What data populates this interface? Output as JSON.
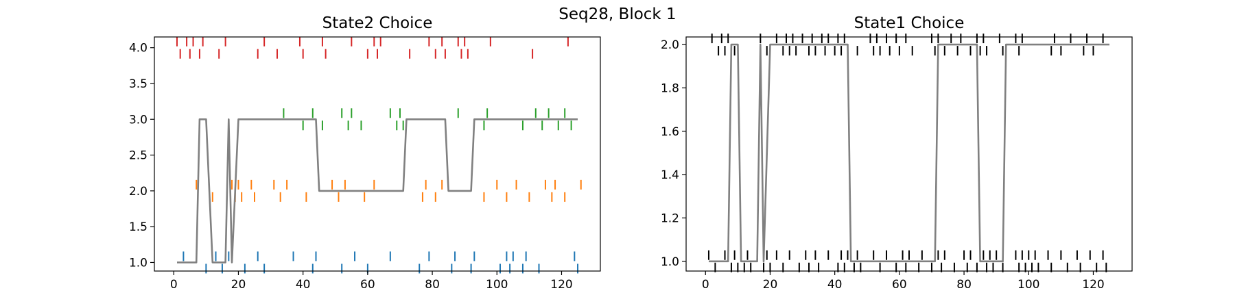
{
  "figure": {
    "suptitle": "Seq28, Block 1"
  },
  "chart_data": [
    {
      "type": "line",
      "title": "State2 Choice",
      "xlabel": "",
      "ylabel": "",
      "xlim": [
        -6,
        132
      ],
      "ylim": [
        0.88,
        4.15
      ],
      "xticks": [
        0,
        20,
        40,
        60,
        80,
        100,
        120
      ],
      "yticks": [
        1.0,
        1.5,
        2.0,
        2.5,
        3.0,
        3.5,
        4.0
      ],
      "ytick_format": 1,
      "grid": false,
      "series": [
        {
          "color": "#808080",
          "x": [
            1,
            7,
            8,
            10,
            12,
            16,
            17,
            18,
            20,
            44,
            45,
            71,
            72,
            84,
            85,
            92,
            93,
            125
          ],
          "y": [
            1,
            1,
            3,
            3,
            1,
            1,
            3,
            1,
            3,
            3,
            2,
            2,
            3,
            3,
            2,
            2,
            3,
            3
          ]
        }
      ],
      "events": [
        {
          "color": "#d62728",
          "level": 4,
          "x": [
            1,
            2,
            4,
            5,
            6,
            8,
            9,
            14,
            16,
            26,
            28,
            32,
            39,
            40,
            46,
            47,
            55,
            60,
            62,
            63,
            64,
            73,
            79,
            81,
            83,
            84,
            88,
            89,
            90,
            91,
            98,
            111,
            122
          ]
        },
        {
          "color": "#2ca02c",
          "level": 3,
          "x": [
            34,
            40,
            43,
            46,
            52,
            54,
            55,
            58,
            67,
            69,
            70,
            71,
            88,
            96,
            97,
            108,
            112,
            114,
            116,
            119,
            121,
            123
          ]
        },
        {
          "color": "#ff7f0e",
          "level": 2,
          "x": [
            7,
            12,
            18,
            19,
            20,
            21,
            24,
            25,
            31,
            33,
            35,
            41,
            49,
            51,
            53,
            59,
            62,
            77,
            78,
            81,
            83,
            96,
            100,
            103,
            106,
            110,
            115,
            117,
            118,
            121,
            126
          ]
        },
        {
          "color": "#1f77b4",
          "level": 1,
          "x": [
            3,
            10,
            13,
            15,
            17,
            22,
            26,
            28,
            37,
            43,
            44,
            52,
            56,
            60,
            67,
            76,
            79,
            86,
            87,
            92,
            93,
            101,
            103,
            104,
            105,
            108,
            109,
            113,
            124,
            125
          ]
        }
      ]
    },
    {
      "type": "line",
      "title": "State1 Choice",
      "xlabel": "",
      "ylabel": "",
      "xlim": [
        -6,
        132
      ],
      "ylim": [
        0.955,
        2.035
      ],
      "xticks": [
        0,
        20,
        40,
        60,
        80,
        100,
        120
      ],
      "yticks": [
        1.0,
        1.2,
        1.4,
        1.6,
        1.8,
        2.0
      ],
      "ytick_format": 1,
      "grid": false,
      "series": [
        {
          "color": "#808080",
          "x": [
            1,
            7,
            8,
            10,
            11,
            16,
            17,
            18,
            20,
            44,
            45,
            71,
            72,
            84,
            85,
            92,
            93,
            125
          ],
          "y": [
            1,
            1,
            2,
            2,
            1,
            1,
            2,
            1,
            2,
            2,
            1,
            1,
            2,
            2,
            1,
            1,
            2,
            2
          ]
        }
      ],
      "events": [
        {
          "color": "#000000",
          "level": 2,
          "x": [
            2,
            4,
            5,
            6,
            7,
            9,
            17,
            19,
            22,
            24,
            25,
            26,
            27,
            28,
            30,
            32,
            33,
            34,
            36,
            37,
            38,
            40,
            41,
            42,
            43,
            47,
            51,
            52,
            53,
            54,
            56,
            57,
            59,
            60,
            62,
            64,
            70,
            71,
            72,
            74,
            76,
            78,
            79,
            82,
            84,
            85,
            86,
            87,
            91,
            92,
            96,
            97,
            98,
            107,
            108,
            110,
            113,
            117,
            118,
            120,
            123
          ]
        },
        {
          "color": "#000000",
          "level": 1,
          "x": [
            1,
            3,
            6,
            8,
            9,
            10,
            11,
            12,
            13,
            14,
            16,
            18,
            19,
            20,
            22,
            24,
            26,
            29,
            31,
            32,
            34,
            35,
            38,
            41,
            42,
            43,
            44,
            46,
            47,
            48,
            52,
            54,
            56,
            59,
            61,
            62,
            63,
            66,
            67,
            70,
            72,
            73,
            74,
            77,
            80,
            81,
            82,
            84,
            86,
            87,
            88,
            89,
            90,
            92,
            96,
            97,
            98,
            99,
            100,
            101,
            102,
            103,
            106,
            107,
            110,
            112,
            115,
            116,
            119,
            121,
            123,
            124
          ]
        }
      ]
    }
  ]
}
